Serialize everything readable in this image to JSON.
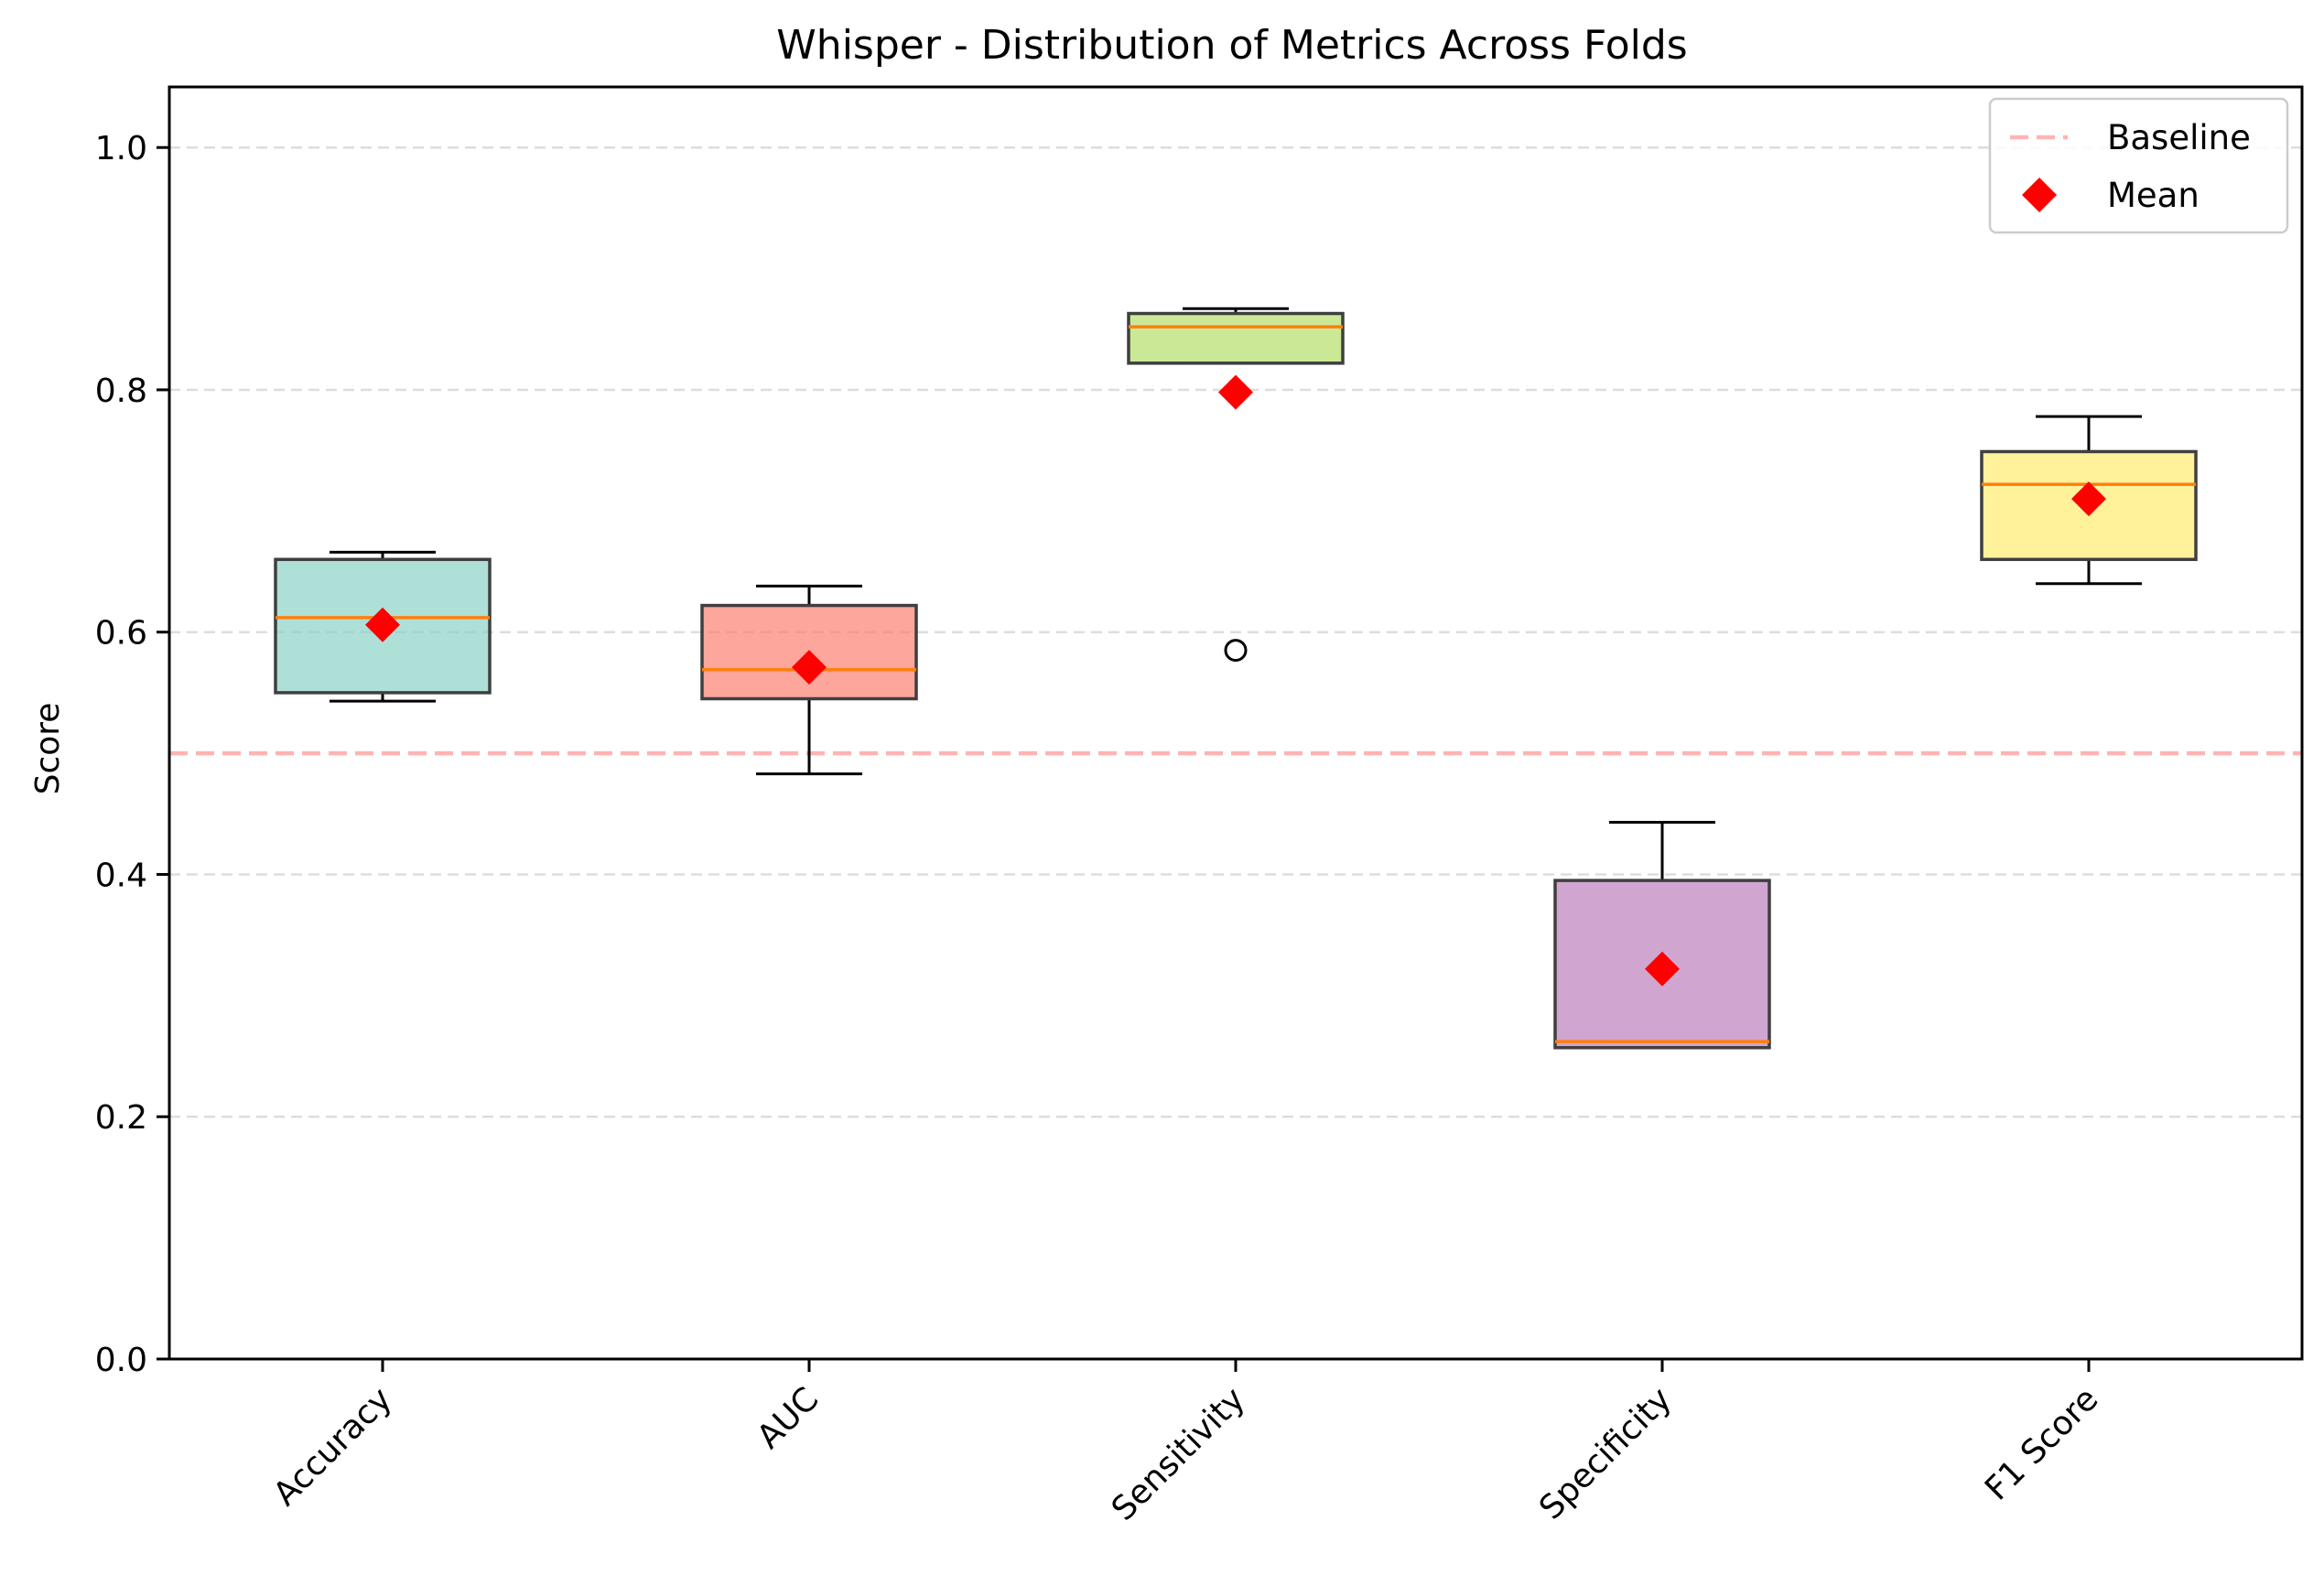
{
  "chart_data": {
    "type": "box",
    "title": "Whisper - Distribution of Metrics Across Folds",
    "ylabel": "Score",
    "xlabel": "",
    "ylim": [
      0,
      1.05
    ],
    "yticks": [
      "0.0",
      "0.2",
      "0.4",
      "0.6",
      "0.8",
      "1.0"
    ],
    "ytick_values": [
      0.0,
      0.2,
      0.4,
      0.6,
      0.8,
      1.0
    ],
    "grid": "horizontal dashed",
    "categories": [
      "Accuracy",
      "AUC",
      "Sensitivity",
      "Specificity",
      "F1 Score"
    ],
    "boxes": [
      {
        "label": "Accuracy",
        "whisker_low": 0.543,
        "q1": 0.55,
        "median": 0.612,
        "q3": 0.66,
        "whisker_high": 0.666,
        "mean": 0.606,
        "outliers": [],
        "color": "#8dd3c7"
      },
      {
        "label": "AUC",
        "whisker_low": 0.483,
        "q1": 0.545,
        "median": 0.569,
        "q3": 0.622,
        "whisker_high": 0.638,
        "mean": 0.571,
        "outliers": [],
        "color": "#fb8072"
      },
      {
        "label": "Sensitivity",
        "whisker_low": 0.822,
        "q1": 0.822,
        "median": 0.852,
        "q3": 0.863,
        "whisker_high": 0.867,
        "mean": 0.798,
        "outliers": [
          0.585
        ],
        "color": "#b3de69"
      },
      {
        "label": "Specificity",
        "whisker_low": 0.257,
        "q1": 0.257,
        "median": 0.262,
        "q3": 0.395,
        "whisker_high": 0.443,
        "mean": 0.322,
        "outliers": [],
        "color": "#bc80bd"
      },
      {
        "label": "F1 Score",
        "whisker_low": 0.64,
        "q1": 0.66,
        "median": 0.722,
        "q3": 0.749,
        "whisker_high": 0.778,
        "mean": 0.71,
        "outliers": [],
        "color": "#ffed6f"
      }
    ],
    "baseline": 0.5,
    "legend": {
      "placement": "top-right",
      "entries": [
        {
          "label": "Baseline",
          "color": "#ffb3b3",
          "marker": "dashed-line"
        },
        {
          "label": "Mean",
          "color": "#ff0000",
          "marker": "diamond"
        }
      ]
    },
    "colors": {
      "median": "#ff7f0e",
      "mean": "#ff0000",
      "baseline": "#ffb3b3",
      "box_edge": "#3f3f3f",
      "grid": "#dddddd"
    }
  }
}
